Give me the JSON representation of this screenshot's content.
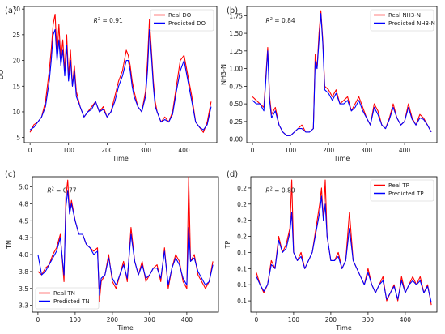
{
  "chart_data": [
    {
      "type": "line",
      "panel_label": "(a)",
      "r2_prefix": "R",
      "r2_sup": "2",
      "r2_value": " = 0.91",
      "xlabel": "Time",
      "ylabel": "DO",
      "xlim": [
        -15,
        485
      ],
      "ylim": [
        4,
        30.5
      ],
      "xticks": [
        0,
        100,
        200,
        300,
        400
      ],
      "yticks": [
        5,
        10,
        15,
        20,
        25,
        30
      ],
      "legend_position": "top-right",
      "series": [
        {
          "name": "Real  DO",
          "color": "#ff0000",
          "x": [
            0,
            10,
            20,
            30,
            40,
            50,
            55,
            60,
            65,
            70,
            75,
            80,
            85,
            90,
            95,
            100,
            105,
            110,
            115,
            120,
            130,
            140,
            150,
            160,
            170,
            180,
            190,
            200,
            210,
            220,
            230,
            240,
            250,
            255,
            260,
            265,
            270,
            280,
            290,
            300,
            305,
            310,
            315,
            320,
            325,
            330,
            340,
            350,
            360,
            370,
            380,
            390,
            400,
            410,
            420,
            430,
            440,
            450,
            460,
            470
          ],
          "values": [
            6,
            7.5,
            8,
            9,
            12,
            18,
            22,
            27,
            29,
            21,
            27,
            20,
            24,
            18,
            25,
            17,
            22,
            15,
            19,
            14,
            11,
            9,
            10,
            11,
            12,
            10,
            11,
            9,
            10,
            13,
            16,
            18,
            22,
            21,
            19,
            16,
            14,
            11,
            10,
            14,
            20,
            28,
            22,
            16,
            12,
            10,
            8,
            9,
            8,
            10,
            15,
            20,
            21,
            17,
            13,
            8,
            7,
            6,
            8,
            12
          ]
        },
        {
          "name": "Predicted  DO",
          "color": "#0000ff",
          "x": [
            0,
            10,
            20,
            30,
            40,
            50,
            55,
            60,
            65,
            70,
            75,
            80,
            85,
            90,
            95,
            100,
            105,
            110,
            115,
            120,
            130,
            140,
            150,
            160,
            170,
            180,
            190,
            200,
            210,
            220,
            230,
            240,
            250,
            255,
            260,
            265,
            270,
            280,
            290,
            300,
            305,
            310,
            315,
            320,
            325,
            330,
            340,
            350,
            360,
            370,
            380,
            390,
            400,
            410,
            420,
            430,
            440,
            450,
            460,
            470
          ],
          "values": [
            6.5,
            7,
            8,
            9,
            11,
            16,
            20,
            25,
            26,
            20,
            24,
            19,
            22,
            17,
            23,
            16,
            20,
            15,
            18,
            13,
            11,
            9,
            10,
            10.5,
            12,
            10,
            10.5,
            9,
            10,
            12,
            15,
            17,
            20,
            20,
            18,
            15,
            13,
            11,
            10,
            13,
            18,
            26,
            21,
            15,
            11,
            10,
            8,
            8.5,
            8,
            9.5,
            14,
            18,
            20,
            16,
            12,
            8,
            7,
            6.5,
            7.5,
            11
          ]
        }
      ]
    },
    {
      "type": "line",
      "panel_label": "(b)",
      "r2_prefix": "R",
      "r2_sup": "2",
      "r2_value": " = 0.84",
      "xlabel": "Time",
      "ylabel": "NH3-N",
      "xlim": [
        -15,
        485
      ],
      "ylim": [
        -0.05,
        1.88
      ],
      "xticks": [
        0,
        100,
        200,
        300,
        400
      ],
      "yticks": [
        0.0,
        0.25,
        0.5,
        0.75,
        1.0,
        1.25,
        1.5,
        1.75
      ],
      "legend_position": "top-right",
      "series": [
        {
          "name": "Real  NH3-N",
          "color": "#ff0000",
          "x": [
            0,
            10,
            20,
            30,
            40,
            45,
            50,
            60,
            70,
            80,
            90,
            100,
            110,
            120,
            130,
            140,
            150,
            160,
            165,
            170,
            175,
            180,
            185,
            190,
            200,
            210,
            220,
            230,
            240,
            250,
            260,
            270,
            280,
            290,
            300,
            310,
            320,
            330,
            340,
            350,
            360,
            370,
            380,
            390,
            400,
            410,
            420,
            430,
            440,
            450,
            460,
            470
          ],
          "values": [
            0.6,
            0.55,
            0.5,
            0.45,
            1.3,
            0.6,
            0.35,
            0.45,
            0.2,
            0.1,
            0.05,
            0.05,
            0.1,
            0.15,
            0.2,
            0.1,
            0.1,
            0.15,
            1.2,
            1.0,
            1.5,
            1.82,
            1.4,
            0.75,
            0.7,
            0.6,
            0.7,
            0.5,
            0.55,
            0.6,
            0.4,
            0.5,
            0.6,
            0.45,
            0.3,
            0.2,
            0.5,
            0.4,
            0.2,
            0.15,
            0.3,
            0.5,
            0.3,
            0.2,
            0.25,
            0.5,
            0.3,
            0.2,
            0.35,
            0.3,
            0.2,
            0.1
          ]
        },
        {
          "name": "Predicted  NH3-N",
          "color": "#0000ff",
          "x": [
            0,
            10,
            20,
            30,
            40,
            45,
            50,
            60,
            70,
            80,
            90,
            100,
            110,
            120,
            130,
            140,
            150,
            160,
            165,
            170,
            175,
            180,
            185,
            190,
            200,
            210,
            220,
            230,
            240,
            250,
            260,
            270,
            280,
            290,
            300,
            310,
            320,
            330,
            340,
            350,
            360,
            370,
            380,
            390,
            400,
            410,
            420,
            430,
            440,
            450,
            460,
            470
          ],
          "values": [
            0.55,
            0.5,
            0.5,
            0.4,
            1.25,
            0.55,
            0.3,
            0.4,
            0.2,
            0.1,
            0.05,
            0.05,
            0.1,
            0.15,
            0.15,
            0.1,
            0.1,
            0.15,
            1.1,
            1.0,
            1.4,
            1.78,
            1.35,
            0.7,
            0.65,
            0.55,
            0.65,
            0.5,
            0.5,
            0.55,
            0.4,
            0.45,
            0.55,
            0.4,
            0.3,
            0.2,
            0.45,
            0.35,
            0.2,
            0.15,
            0.28,
            0.45,
            0.3,
            0.2,
            0.25,
            0.45,
            0.28,
            0.2,
            0.3,
            0.28,
            0.2,
            0.1
          ]
        }
      ]
    },
    {
      "type": "line",
      "panel_label": "(c)",
      "r2_prefix": "R",
      "r2_sup": "2",
      "r2_value": " = 0.77",
      "xlabel": "Time",
      "ylabel": "TN",
      "xlim": [
        -15,
        485
      ],
      "ylim": [
        3.15,
        5.15
      ],
      "xticks": [
        0,
        100,
        200,
        300,
        400
      ],
      "yticks": [
        3.25,
        3.5,
        3.75,
        4.0,
        4.25,
        4.5,
        4.75,
        5.0
      ],
      "legend_position": "bottom-left",
      "series": [
        {
          "name": "Real  TN",
          "color": "#ff0000",
          "x": [
            0,
            10,
            20,
            30,
            40,
            50,
            60,
            70,
            75,
            80,
            85,
            90,
            100,
            110,
            120,
            130,
            140,
            150,
            160,
            165,
            170,
            180,
            190,
            200,
            210,
            220,
            230,
            240,
            250,
            260,
            270,
            280,
            290,
            300,
            310,
            320,
            330,
            340,
            350,
            360,
            370,
            380,
            390,
            400,
            405,
            410,
            420,
            430,
            440,
            450,
            460,
            470
          ],
          "values": [
            3.75,
            3.7,
            3.8,
            3.85,
            4.0,
            4.1,
            4.3,
            3.6,
            4.85,
            5.1,
            4.6,
            4.8,
            4.5,
            4.3,
            4.3,
            4.15,
            4.1,
            4.05,
            4.1,
            3.3,
            3.6,
            3.7,
            4.0,
            3.6,
            3.5,
            3.7,
            3.9,
            3.6,
            4.4,
            3.9,
            3.7,
            3.9,
            3.6,
            3.7,
            3.8,
            3.85,
            3.6,
            4.1,
            3.5,
            3.8,
            4.0,
            3.9,
            3.6,
            3.5,
            5.15,
            3.9,
            4.0,
            3.7,
            3.6,
            3.5,
            3.6,
            3.9
          ]
        },
        {
          "name": "Predicted  TN",
          "color": "#0000ff",
          "x": [
            0,
            10,
            20,
            30,
            40,
            50,
            60,
            70,
            75,
            80,
            85,
            90,
            100,
            110,
            120,
            130,
            140,
            150,
            160,
            165,
            170,
            180,
            190,
            200,
            210,
            220,
            230,
            240,
            250,
            260,
            270,
            280,
            290,
            300,
            310,
            320,
            330,
            340,
            350,
            360,
            370,
            380,
            390,
            400,
            405,
            410,
            420,
            430,
            440,
            450,
            460,
            470
          ],
          "values": [
            4.0,
            3.7,
            3.75,
            3.85,
            3.95,
            4.05,
            4.25,
            3.7,
            4.7,
            4.95,
            4.6,
            4.75,
            4.5,
            4.3,
            4.3,
            4.15,
            4.1,
            4.0,
            4.05,
            3.4,
            3.65,
            3.7,
            3.95,
            3.65,
            3.55,
            3.7,
            3.85,
            3.65,
            4.3,
            3.9,
            3.7,
            3.85,
            3.65,
            3.7,
            3.8,
            3.8,
            3.65,
            4.05,
            3.55,
            3.8,
            3.95,
            3.85,
            3.65,
            3.55,
            4.4,
            3.9,
            3.95,
            3.75,
            3.65,
            3.55,
            3.6,
            3.85
          ]
        }
      ]
    },
    {
      "type": "line",
      "panel_label": "(d)",
      "r2_prefix": "R",
      "r2_sup": "2",
      "r2_value": " = 0.80",
      "xlabel": "Time",
      "ylabel": "TP",
      "xlim": [
        -15,
        485
      ],
      "ylim": [
        0.066,
        0.234
      ],
      "xticks": [
        0,
        100,
        200,
        300,
        400
      ],
      "yticks": [
        0.08,
        0.1,
        0.12,
        0.14,
        0.16,
        0.18,
        0.2,
        0.22
      ],
      "legend_position": "top-right",
      "series": [
        {
          "name": "Real  TP",
          "color": "#ff0000",
          "x": [
            0,
            10,
            20,
            30,
            40,
            50,
            60,
            70,
            80,
            90,
            95,
            100,
            110,
            120,
            130,
            140,
            150,
            160,
            170,
            175,
            180,
            185,
            190,
            200,
            210,
            220,
            230,
            240,
            250,
            260,
            270,
            280,
            290,
            300,
            310,
            320,
            330,
            340,
            350,
            360,
            370,
            380,
            390,
            400,
            410,
            420,
            430,
            440,
            450,
            460,
            470
          ],
          "values": [
            0.115,
            0.1,
            0.09,
            0.1,
            0.13,
            0.12,
            0.16,
            0.14,
            0.15,
            0.17,
            0.23,
            0.14,
            0.13,
            0.14,
            0.12,
            0.13,
            0.14,
            0.17,
            0.2,
            0.22,
            0.18,
            0.23,
            0.16,
            0.13,
            0.13,
            0.14,
            0.12,
            0.13,
            0.19,
            0.13,
            0.12,
            0.11,
            0.1,
            0.12,
            0.1,
            0.09,
            0.1,
            0.11,
            0.08,
            0.09,
            0.1,
            0.08,
            0.11,
            0.09,
            0.1,
            0.11,
            0.1,
            0.11,
            0.09,
            0.1,
            0.075
          ]
        },
        {
          "name": "Predicted  TP",
          "color": "#0000ff",
          "x": [
            0,
            10,
            20,
            30,
            40,
            50,
            60,
            70,
            80,
            90,
            95,
            100,
            110,
            120,
            130,
            140,
            150,
            160,
            170,
            175,
            180,
            185,
            190,
            200,
            210,
            220,
            230,
            240,
            250,
            260,
            270,
            280,
            290,
            300,
            310,
            320,
            330,
            340,
            350,
            360,
            370,
            380,
            390,
            400,
            410,
            420,
            430,
            440,
            450,
            460,
            470
          ],
          "values": [
            0.11,
            0.1,
            0.092,
            0.1,
            0.125,
            0.12,
            0.155,
            0.14,
            0.145,
            0.165,
            0.19,
            0.14,
            0.13,
            0.135,
            0.12,
            0.13,
            0.14,
            0.165,
            0.19,
            0.21,
            0.18,
            0.2,
            0.16,
            0.13,
            0.13,
            0.135,
            0.12,
            0.13,
            0.17,
            0.13,
            0.12,
            0.11,
            0.1,
            0.115,
            0.1,
            0.09,
            0.1,
            0.105,
            0.082,
            0.09,
            0.098,
            0.082,
            0.105,
            0.09,
            0.1,
            0.105,
            0.1,
            0.105,
            0.09,
            0.098,
            0.078
          ]
        }
      ]
    }
  ]
}
